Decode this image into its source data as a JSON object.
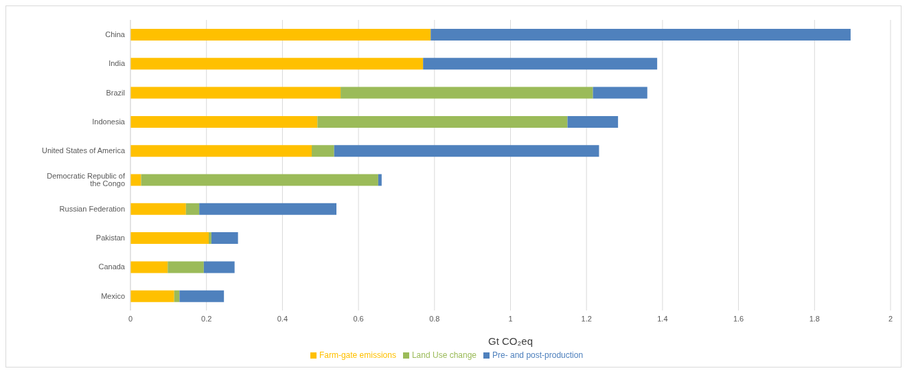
{
  "chart_data": {
    "type": "bar",
    "orientation": "horizontal",
    "stacked": true,
    "xlabel": "Gt CO₂eq",
    "categories": [
      "China",
      "India",
      "Brazil",
      "Indonesia",
      "United States of America",
      "Democratic Republic of the Congo",
      "Russian Federation",
      "Pakistan",
      "Canada",
      "Mexico"
    ],
    "series": [
      {
        "name": "Farm-gate emissions",
        "color": "#ffc000",
        "values": [
          0.79,
          0.77,
          0.553,
          0.492,
          0.477,
          0.028,
          0.146,
          0.206,
          0.098,
          0.115
        ]
      },
      {
        "name": "Land Use change",
        "color": "#9bbb59",
        "values": [
          0,
          0,
          0.664,
          0.658,
          0.059,
          0.624,
          0.035,
          0.007,
          0.095,
          0.014
        ]
      },
      {
        "name": "Pre- and post-production",
        "color": "#4f81bd",
        "values": [
          1.105,
          0.616,
          0.143,
          0.133,
          0.697,
          0.009,
          0.361,
          0.07,
          0.081,
          0.117
        ]
      }
    ],
    "xlim": [
      0,
      2
    ],
    "xticks": [
      0,
      0.2,
      0.4,
      0.6,
      0.8,
      1,
      1.2,
      1.4,
      1.6,
      1.8,
      2
    ],
    "grid": "x",
    "legend": "bottom"
  }
}
